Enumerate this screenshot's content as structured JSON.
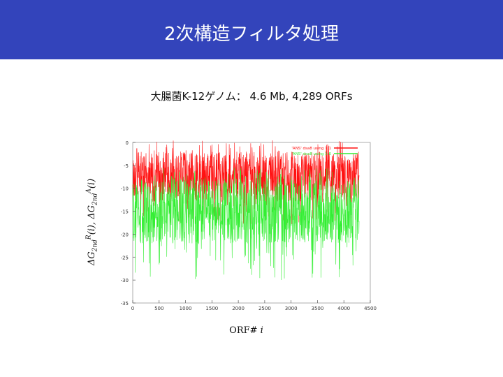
{
  "slide": {
    "title": "2次構造フィルタ処理",
    "subtitle": "大腸菌K-12ゲノム： 4.6 Mb, 4,289 ORFs"
  },
  "chart_data": {
    "type": "line",
    "xlabel_main": "ORF# ",
    "xlabel_var": "i",
    "ylabel": {
      "dg": "ΔG",
      "sub1": "2nd",
      "sup1": "R",
      "arg1": "(i),  ",
      "sub2": "2nd",
      "sup2": "A",
      "arg2": "(i)"
    },
    "xlim": [
      0,
      4500
    ],
    "ylim": [
      -35,
      0
    ],
    "x_ticks": [
      "0",
      "500",
      "1000",
      "1500",
      "2000",
      "2500",
      "3000",
      "3500",
      "4000",
      "4500"
    ],
    "y_ticks": [
      "0",
      "-5",
      "-10",
      "-15",
      "-20",
      "-25",
      "-30",
      "-35"
    ],
    "n_orfs": 4289,
    "series": [
      {
        "name": "'ANS' dsa8 using 1:1",
        "color": "#ff1111",
        "mean": -7.0,
        "band_top": -2.0,
        "band_bottom": -13.0,
        "spike_min": -18.0
      },
      {
        "name": "'ANS' dsa8 using 1:6",
        "color": "#33ee33",
        "mean": -15.5,
        "band_top": -8.0,
        "band_bottom": -22.0,
        "spike_min": -30.0
      }
    ],
    "grid": false,
    "legend": "top-right"
  }
}
